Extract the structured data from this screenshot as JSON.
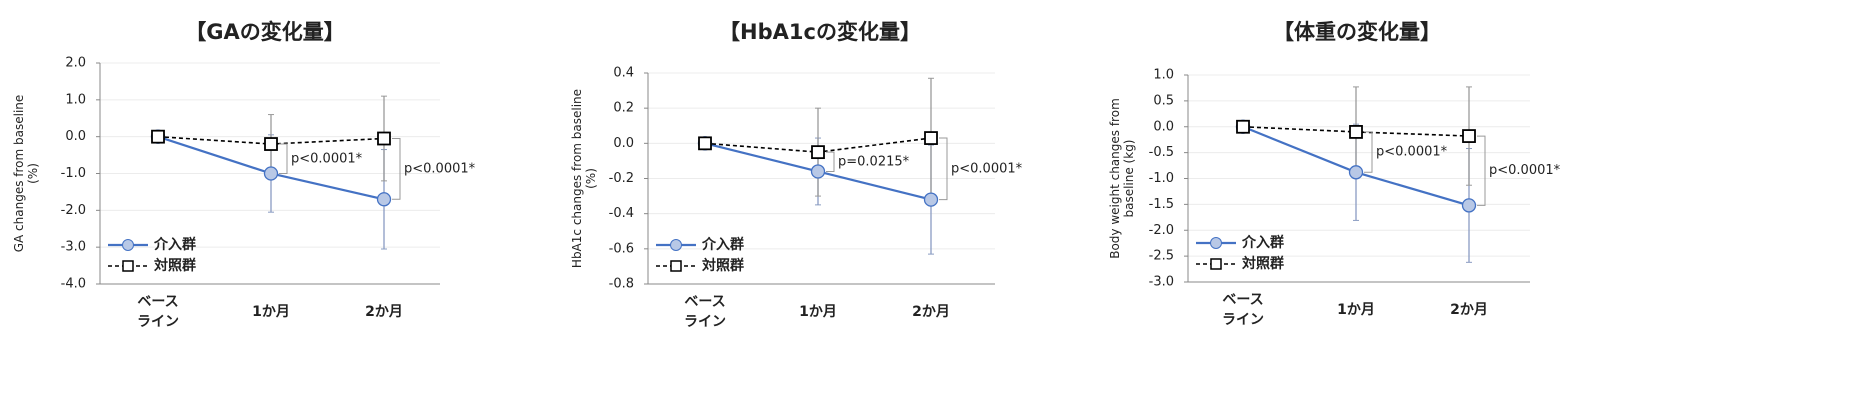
{
  "chart_data": [
    {
      "type": "line",
      "title": "【GAの変化量】",
      "y_label": "GA changes from baseline\n(%)",
      "categories": [
        "ベース\nライン",
        "1か月",
        "2か月"
      ],
      "series": [
        {
          "name": "介入群",
          "color": "#4472c4",
          "marker": "circle",
          "values": [
            0,
            -1.0,
            -1.7
          ],
          "errors": [
            0,
            1.05,
            1.35
          ]
        },
        {
          "name": "対照群",
          "color": "#000000",
          "marker": "square",
          "dashed": true,
          "values": [
            0,
            -0.2,
            -0.05
          ],
          "errors": [
            0,
            0.8,
            1.15
          ]
        }
      ],
      "annotations": [
        "p<0.0001*",
        "p<0.0001*"
      ],
      "ylim": [
        -4,
        2
      ],
      "yticks": [
        {
          "value": -4,
          "label": "-4.0"
        },
        {
          "value": -3,
          "label": "-3.0"
        },
        {
          "value": -2,
          "label": "-2.0"
        },
        {
          "value": -1,
          "label": "-1.0"
        },
        {
          "value": 0,
          "label": "0.0"
        },
        {
          "value": 1,
          "label": "1.0"
        },
        {
          "value": 2,
          "label": "2.0"
        }
      ],
      "grid": true,
      "legend": "lower left"
    },
    {
      "type": "line",
      "title": "【HbA1cの変化量】",
      "y_label": "HbA1c changes from baseline\n(%)",
      "categories": [
        "ベース\nライン",
        "1か月",
        "2か月"
      ],
      "series": [
        {
          "name": "介入群",
          "color": "#4472c4",
          "marker": "circle",
          "values": [
            0,
            -0.16,
            -0.32
          ],
          "errors": [
            0,
            0.19,
            0.31
          ]
        },
        {
          "name": "対照群",
          "color": "#000000",
          "marker": "square",
          "dashed": true,
          "values": [
            0,
            -0.05,
            0.03
          ],
          "errors": [
            0,
            0.25,
            0.34
          ]
        }
      ],
      "annotations": [
        "p=0.0215*",
        "p<0.0001*"
      ],
      "ylim": [
        -0.8,
        0.4
      ],
      "yticks": [
        -0.8,
        -0.6,
        -0.4,
        -0.2,
        {
          "value": 0,
          "label": "0.0"
        },
        0.2,
        0.4
      ],
      "grid": true,
      "legend": "lower left"
    },
    {
      "type": "line",
      "title": "【体重の変化量】",
      "y_label": "Body weight changes from\nbaseline (kg)",
      "categories": [
        "ベース\nライン",
        "1か月",
        "2か月"
      ],
      "series": [
        {
          "name": "介入群",
          "color": "#4472c4",
          "marker": "circle",
          "values": [
            0,
            -0.88,
            -1.52
          ],
          "errors": [
            0,
            0.93,
            1.1
          ]
        },
        {
          "name": "対照群",
          "color": "#000000",
          "marker": "square",
          "dashed": true,
          "values": [
            0,
            -0.1,
            -0.18
          ],
          "errors": [
            0,
            0.87,
            0.95
          ]
        }
      ],
      "annotations": [
        "p<0.0001*",
        "p<0.0001*"
      ],
      "ylim": [
        -3,
        1
      ],
      "yticks": [
        {
          "value": -3,
          "label": "-3.0"
        },
        -2.5,
        {
          "value": -2,
          "label": "-2.0"
        },
        -1.5,
        {
          "value": -1,
          "label": "-1.0"
        },
        -0.5,
        {
          "value": 0,
          "label": "0.0"
        },
        0.5,
        {
          "value": 1,
          "label": "1.0"
        }
      ],
      "grid": true,
      "legend": "lower left"
    }
  ]
}
